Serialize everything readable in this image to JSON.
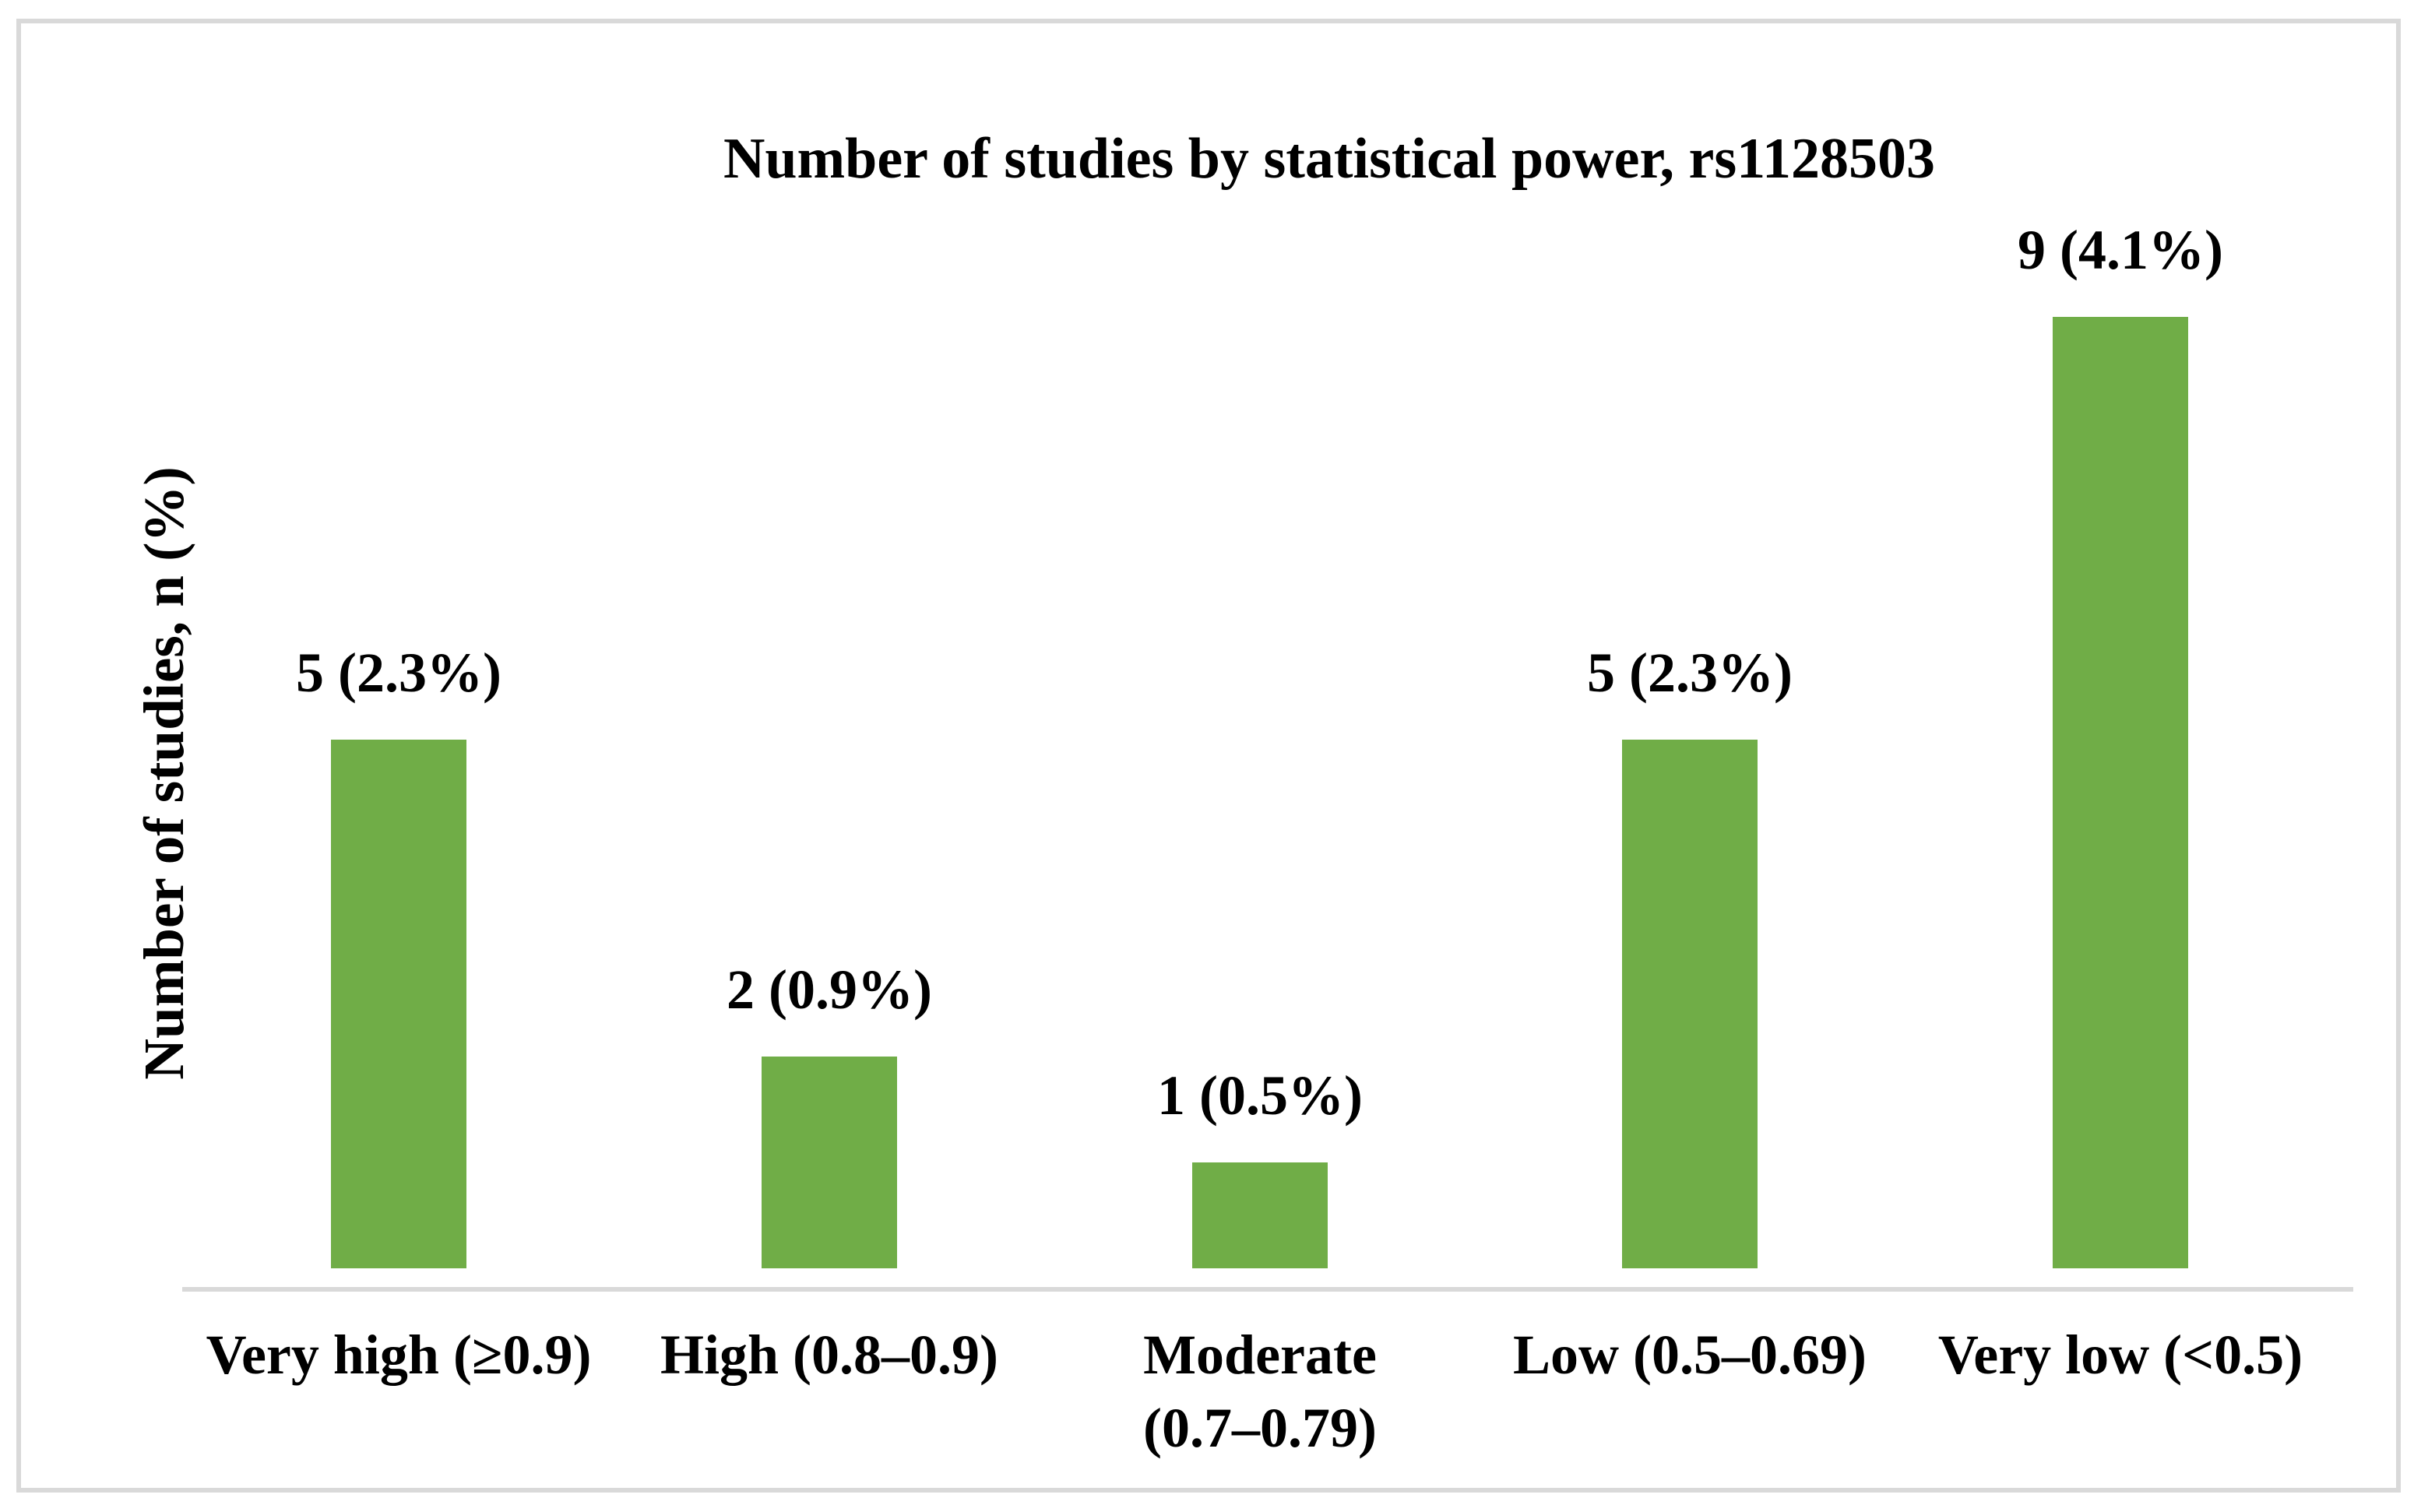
{
  "figure": {
    "title": "Number of studies by statistical power, rs1128503",
    "y_axis_label": "Number of studies, n (%)"
  },
  "x_labels": [
    {
      "line1": "Very high (≥0.9)",
      "line2": ""
    },
    {
      "line1": "High (0.8–0.9)",
      "line2": ""
    },
    {
      "line1": "Moderate",
      "line2": "(0.7–0.79)"
    },
    {
      "line1": "Low (0.5–0.69)",
      "line2": ""
    },
    {
      "line1": "Very low (<0.5)",
      "line2": ""
    }
  ],
  "chart_data": {
    "type": "bar",
    "title": "Number of studies by statistical power, rs1128503",
    "xlabel": "",
    "ylabel": "Number of studies, n (%)",
    "categories": [
      "Very high (≥0.9)",
      "High (0.8–0.9)",
      "Moderate (0.7–0.79)",
      "Low (0.5–0.69)",
      "Very low (<0.5)"
    ],
    "values": [
      5,
      2,
      1,
      5,
      9
    ],
    "data_labels": [
      "5 (2.3%)",
      "2 (0.9%)",
      "1 (0.5%)",
      "5 (2.3%)",
      "9 (4.1%)"
    ],
    "ylim": [
      0,
      9.7
    ],
    "grid": false,
    "legend": false,
    "y_axis_ticks_visible": false,
    "bar_color": "#70AD47"
  },
  "colors": {
    "bar": "#70AD47",
    "axis_line": "#D9D9D9",
    "frame_border": "#D9D9D9",
    "text": "#000000",
    "background": "#FFFFFF"
  }
}
